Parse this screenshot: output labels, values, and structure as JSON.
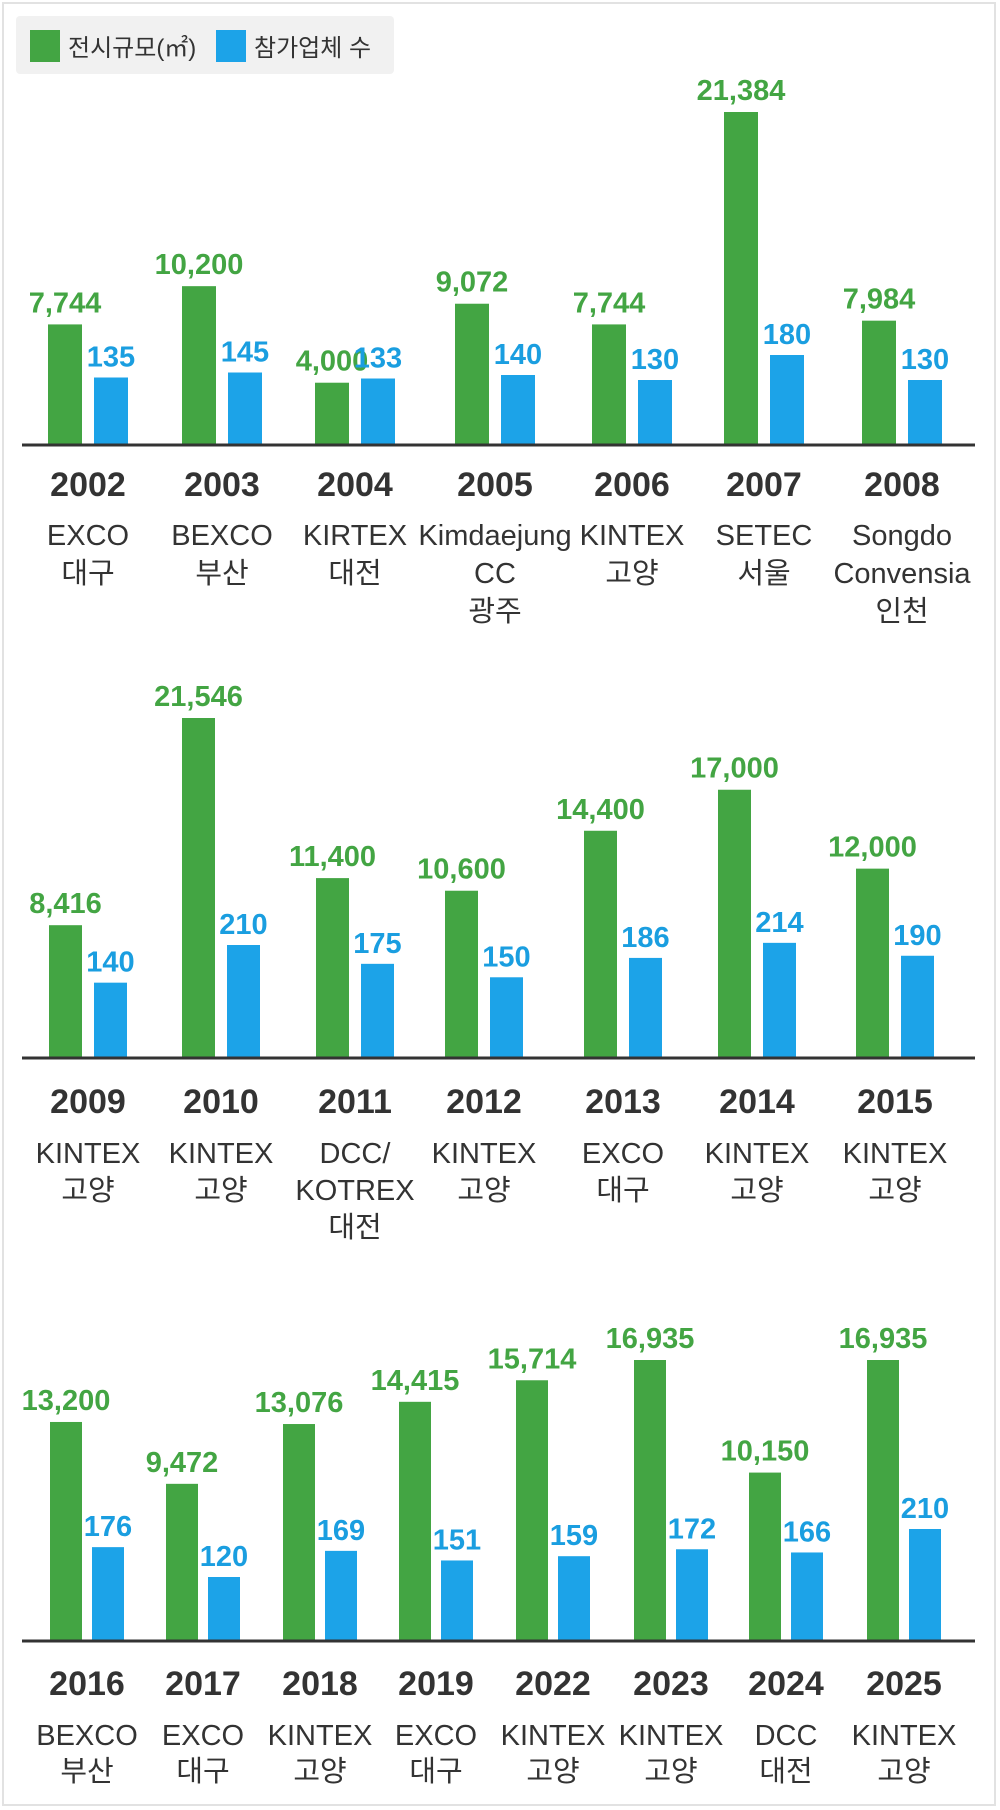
{
  "legend": {
    "area_label": "전시규모(㎡)",
    "count_label": "참가업체 수"
  },
  "colors": {
    "area": "#43a543",
    "count": "#1ca3e8",
    "axis": "#333333",
    "text": "#333333"
  },
  "chart_data": {
    "type": "bar",
    "title": "",
    "series": [
      {
        "name": "전시규모(㎡)",
        "values": [
          7744,
          10200,
          4000,
          9072,
          7744,
          21384,
          7984,
          8416,
          21546,
          11400,
          10600,
          14400,
          17000,
          12000,
          13200,
          9472,
          13076,
          14415,
          15714,
          16935,
          10150,
          16935
        ]
      },
      {
        "name": "참가업체 수",
        "values": [
          135,
          145,
          133,
          140,
          130,
          180,
          130,
          140,
          210,
          175,
          150,
          186,
          214,
          190,
          176,
          120,
          169,
          151,
          159,
          172,
          166,
          210
        ]
      }
    ],
    "categories": [
      "2002",
      "2003",
      "2004",
      "2005",
      "2006",
      "2007",
      "2008",
      "2009",
      "2010",
      "2011",
      "2012",
      "2013",
      "2014",
      "2015",
      "2016",
      "2017",
      "2018",
      "2019",
      "2022",
      "2023",
      "2024",
      "2025"
    ],
    "area_labels": [
      "7,744",
      "10,200",
      "4,000",
      "9,072",
      "7,744",
      "21,384",
      "7,984",
      "8,416",
      "21,546",
      "11,400",
      "10,600",
      "14,400",
      "17,000",
      "12,000",
      "13,200",
      "9,472",
      "13,076",
      "14,415",
      "15,714",
      "16,935",
      "10,150",
      "16,935"
    ],
    "count_labels": [
      "135",
      "145",
      "133",
      "140",
      "130",
      "180",
      "130",
      "140",
      "210",
      "175",
      "150",
      "186",
      "214",
      "190",
      "176",
      "120",
      "169",
      "151",
      "159",
      "172",
      "166",
      "210"
    ],
    "venues": [
      [
        "EXCO",
        "대구"
      ],
      [
        "BEXCO",
        "부산"
      ],
      [
        "KIRTEX",
        "대전"
      ],
      [
        "Kimdaejung",
        "CC",
        "광주"
      ],
      [
        "KINTEX",
        "고양"
      ],
      [
        "SETEC",
        "서울"
      ],
      [
        "Songdo",
        "Convensia",
        "인천"
      ],
      [
        "KINTEX",
        "고양"
      ],
      [
        "KINTEX",
        "고양"
      ],
      [
        "DCC/",
        "KOTREX",
        "대전"
      ],
      [
        "KINTEX",
        "고양"
      ],
      [
        "EXCO",
        "대구"
      ],
      [
        "KINTEX",
        "고양"
      ],
      [
        "KINTEX",
        "고양"
      ],
      [
        "BEXCO",
        "부산"
      ],
      [
        "EXCO",
        "대구"
      ],
      [
        "KINTEX",
        "고양"
      ],
      [
        "EXCO",
        "대구"
      ],
      [
        "KINTEX",
        "고양"
      ],
      [
        "KINTEX",
        "고양"
      ],
      [
        "DCC",
        "대전"
      ],
      [
        "KINTEX",
        "고양"
      ]
    ],
    "panels": [
      {
        "start": 0,
        "count": 7
      },
      {
        "start": 7,
        "count": 7
      },
      {
        "start": 14,
        "count": 8
      }
    ]
  }
}
